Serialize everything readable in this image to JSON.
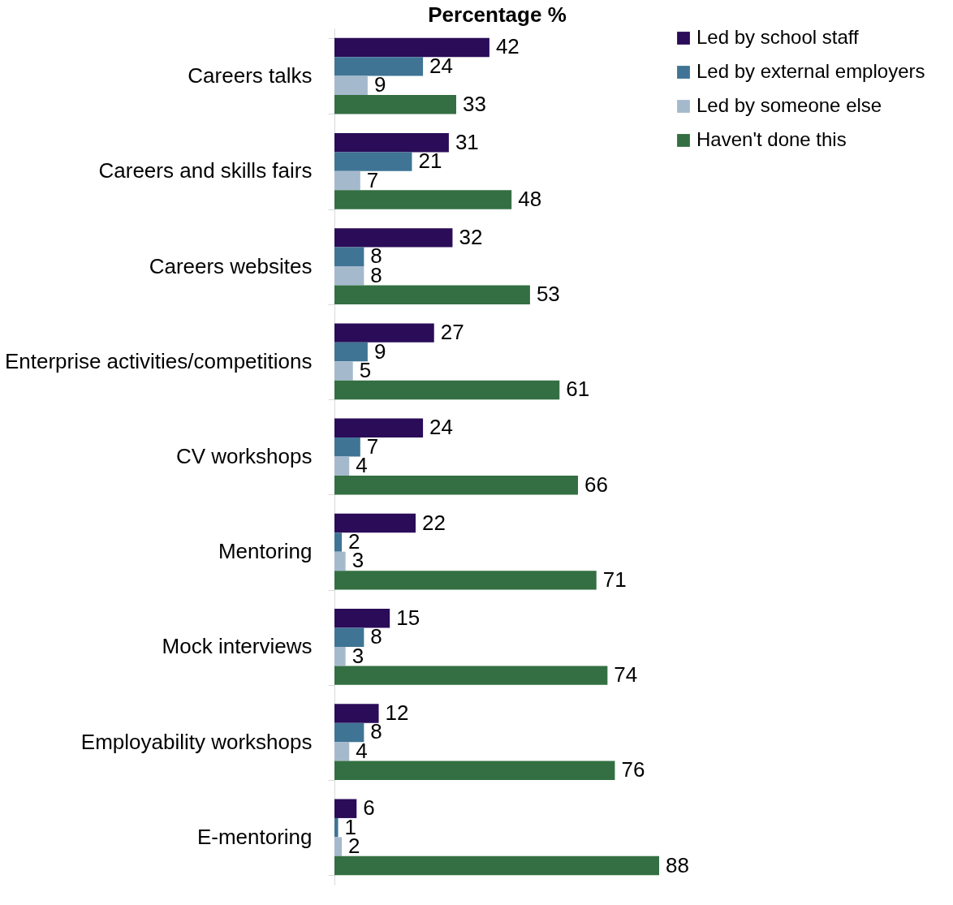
{
  "chart_data": {
    "type": "bar",
    "orientation": "horizontal",
    "xlabel": "Percentage %",
    "tick_labels": "y",
    "data_labels": true,
    "grid": false,
    "legend": "right",
    "categories": [
      "Careers talks",
      "Careers and skills fairs",
      "Careers websites",
      "Enterprise activities/competitions",
      "CV workshops",
      "Mentoring",
      "Mock interviews",
      "Employability workshops",
      "E-mentoring"
    ],
    "series": [
      {
        "name": "Led by school staff",
        "color": "#2a0c58",
        "values": [
          42,
          31,
          32,
          27,
          24,
          22,
          15,
          12,
          6
        ]
      },
      {
        "name": "Led by external employers",
        "color": "#3f7494",
        "values": [
          24,
          21,
          8,
          9,
          7,
          2,
          8,
          8,
          1
        ]
      },
      {
        "name": "Led by someone else",
        "color": "#a5b9cd",
        "values": [
          9,
          7,
          8,
          5,
          4,
          3,
          3,
          4,
          2
        ]
      },
      {
        "name": "Haven't done this",
        "color": "#336f42",
        "values": [
          33,
          48,
          53,
          61,
          66,
          71,
          74,
          76,
          88
        ]
      }
    ]
  }
}
